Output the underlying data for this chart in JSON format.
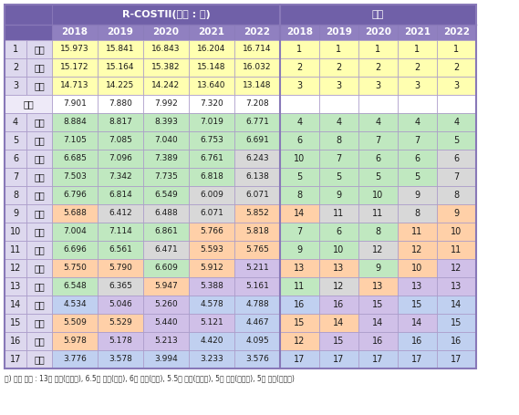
{
  "header1_rcostii": "R-COSTII(단위 : 점)",
  "header1_rank": "순위",
  "years": [
    "2018",
    "2019",
    "2020",
    "2021",
    "2022"
  ],
  "rows": [
    {
      "rank": "1",
      "name": "경기",
      "scores": [
        15.973,
        15.841,
        16.843,
        16.204,
        16.714
      ],
      "ranks": [
        1,
        1,
        1,
        1,
        1
      ]
    },
    {
      "rank": "2",
      "name": "서울",
      "scores": [
        15.172,
        15.164,
        15.382,
        15.148,
        16.032
      ],
      "ranks": [
        2,
        2,
        2,
        2,
        2
      ]
    },
    {
      "rank": "3",
      "name": "대전",
      "scores": [
        14.713,
        14.225,
        14.242,
        13.64,
        13.148
      ],
      "ranks": [
        3,
        3,
        3,
        3,
        3
      ]
    },
    {
      "rank": "평균",
      "name": "",
      "scores": [
        7.901,
        7.88,
        7.992,
        7.32,
        7.208
      ],
      "ranks": [
        null,
        null,
        null,
        null,
        null
      ]
    },
    {
      "rank": "4",
      "name": "경북",
      "scores": [
        8.884,
        8.817,
        8.393,
        7.019,
        6.771
      ],
      "ranks": [
        4,
        4,
        4,
        4,
        4
      ]
    },
    {
      "rank": "5",
      "name": "충남",
      "scores": [
        7.105,
        7.085,
        7.04,
        6.753,
        6.691
      ],
      "ranks": [
        6,
        8,
        7,
        7,
        5
      ]
    },
    {
      "rank": "6",
      "name": "부산",
      "scores": [
        6.685,
        7.096,
        7.389,
        6.761,
        6.243
      ],
      "ranks": [
        10,
        7,
        6,
        6,
        6
      ]
    },
    {
      "rank": "7",
      "name": "울산",
      "scores": [
        7.503,
        7.342,
        7.735,
        6.818,
        6.138
      ],
      "ranks": [
        5,
        5,
        5,
        5,
        7
      ]
    },
    {
      "rank": "8",
      "name": "인천",
      "scores": [
        6.796,
        6.814,
        6.549,
        6.009,
        6.071
      ],
      "ranks": [
        8,
        9,
        10,
        9,
        8
      ]
    },
    {
      "rank": "9",
      "name": "전북",
      "scores": [
        5.688,
        6.412,
        6.488,
        6.071,
        5.852
      ],
      "ranks": [
        14,
        11,
        11,
        8,
        9
      ]
    },
    {
      "rank": "10",
      "name": "충북",
      "scores": [
        7.004,
        7.114,
        6.861,
        5.766,
        5.818
      ],
      "ranks": [
        7,
        6,
        8,
        11,
        10
      ]
    },
    {
      "rank": "11",
      "name": "광주",
      "scores": [
        6.696,
        6.561,
        6.471,
        5.593,
        5.765
      ],
      "ranks": [
        9,
        10,
        12,
        12,
        11
      ]
    },
    {
      "rank": "12",
      "name": "경남",
      "scores": [
        5.75,
        5.79,
        6.609,
        5.912,
        5.211
      ],
      "ranks": [
        13,
        13,
        9,
        10,
        12
      ]
    },
    {
      "rank": "13",
      "name": "대구",
      "scores": [
        6.548,
        6.365,
        5.947,
        5.388,
        5.161
      ],
      "ranks": [
        11,
        12,
        13,
        13,
        13
      ]
    },
    {
      "rank": "14",
      "name": "강원",
      "scores": [
        4.534,
        5.046,
        5.26,
        4.578,
        4.788
      ],
      "ranks": [
        16,
        16,
        15,
        15,
        14
      ]
    },
    {
      "rank": "15",
      "name": "전남",
      "scores": [
        5.509,
        5.529,
        5.44,
        5.121,
        4.467
      ],
      "ranks": [
        15,
        14,
        14,
        14,
        15
      ]
    },
    {
      "rank": "16",
      "name": "세종",
      "scores": [
        5.978,
        5.178,
        5.213,
        4.42,
        4.095
      ],
      "ranks": [
        12,
        15,
        16,
        16,
        16
      ]
    },
    {
      "rank": "17",
      "name": "제주",
      "scores": [
        3.776,
        3.578,
        3.994,
        3.233,
        3.576
      ],
      "ranks": [
        17,
        17,
        17,
        17,
        17
      ]
    }
  ],
  "footnote": "주) 음영 구분 : 13점 이상(노란색), 6.5점 이상(녹색), 6점 이상(회색), 5.5점 이상(주황색), 5점 이상(보라색), 5점 미만(파란색)",
  "header_bg": "#7060A8",
  "subheader_bg": "#9080C0",
  "col_left_bg": "#DDD8EE",
  "avg_bg": "#EEEAF8",
  "avg_score_bg": "#FFFFFF",
  "avg_rank_bg": "#FFFFFF",
  "color_ge13": "#FFFFB0",
  "color_ge6p5": "#C0E8C0",
  "color_ge6": "#D8D8D8",
  "color_ge5p5": "#FFD0A8",
  "color_ge5": "#D0C0E8",
  "color_lt5": "#C0D0F0",
  "border_dark": "#8878B8",
  "border_light": "#A898C8"
}
